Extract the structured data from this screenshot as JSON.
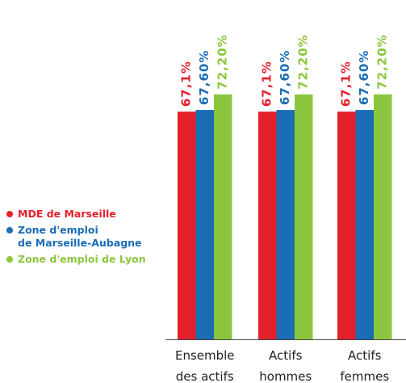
{
  "chart_data": {
    "type": "bar",
    "categories": [
      "Ensemble des actifs",
      "Actifs hommes",
      "Actifs femmes"
    ],
    "series": [
      {
        "name": "MDE de Marseille",
        "color": "#e4202a",
        "values": [
          67.1,
          67.1,
          67.1
        ],
        "value_labels": [
          "67,1%",
          "67,1%",
          "67,1%"
        ]
      },
      {
        "name": "Zone d'emploi\nde Marseille-Aubagne",
        "color": "#1b6db4",
        "values": [
          67.6,
          67.6,
          67.6
        ],
        "value_labels": [
          "67,60%",
          "67,60%",
          "67,60%"
        ]
      },
      {
        "name": "Zone d'emploi de Lyon",
        "color": "#8cc63e",
        "values": [
          72.2,
          72.2,
          72.2
        ],
        "value_labels": [
          "72,20%",
          "72,20%",
          "72,20%"
        ]
      }
    ],
    "legend": "left"
  }
}
